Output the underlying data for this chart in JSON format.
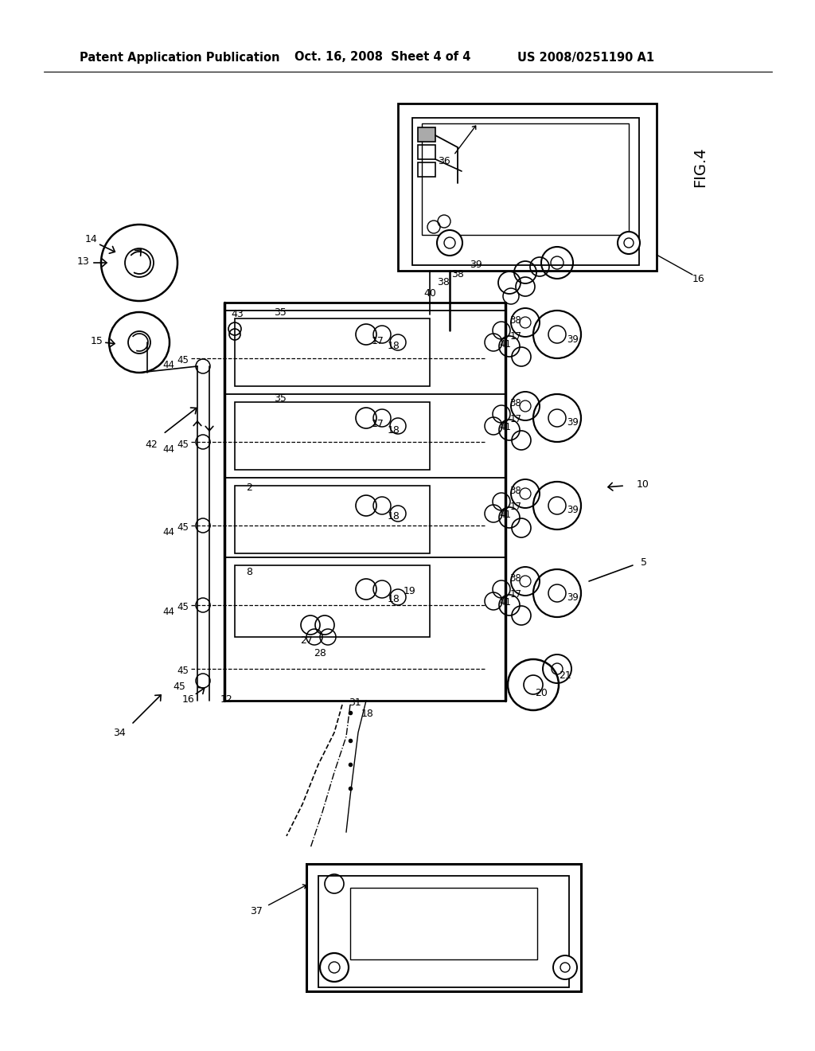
{
  "bg_color": "#ffffff",
  "header_left": "Patent Application Publication",
  "header_mid": "Oct. 16, 2008  Sheet 4 of 4",
  "header_right": "US 2008/0251190 A1",
  "fig_label": "FIG.4"
}
